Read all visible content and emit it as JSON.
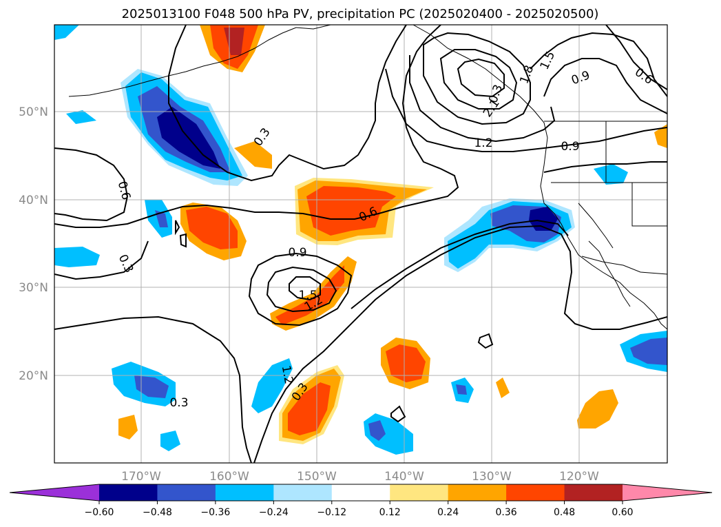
{
  "title": "2025013100 F048 500 hPa PV, precipitation PC (2025020400 - 2025020500)",
  "map": {
    "lon_labels": [
      "170°W",
      "160°W",
      "150°W",
      "140°W",
      "130°W",
      "120°W"
    ],
    "lat_labels": [
      "50°N",
      "40°N",
      "30°N",
      "20°N"
    ]
  },
  "contour_labels": [
    "0.3",
    "0.6",
    "0.9",
    "1.2",
    "1.5",
    "1.8",
    "2.1",
    "0.9",
    "0.6",
    "1.2",
    "0.3",
    "0.6",
    "0.3",
    "0.9",
    "1.5",
    "1.2",
    "0.3",
    "0.3"
  ],
  "colorbar": {
    "tick_labels": [
      "−0.60",
      "−0.48",
      "−0.36",
      "−0.24",
      "−0.12",
      "0.12",
      "0.24",
      "0.36",
      "0.48",
      "0.60"
    ],
    "colors": [
      "#9b30d9",
      "#00008b",
      "#3355cc",
      "#00bfff",
      "#aee6ff",
      "#ffffff",
      "#ffe680",
      "#ffa500",
      "#ff4500",
      "#b22222",
      "#ff88aa"
    ]
  },
  "chart_data": {
    "type": "heatmap",
    "title": "2025013100 F048 500 hPa PV, precipitation PC (2025020400 - 2025020500)",
    "fields": [
      "500 hPa PV (contours)",
      "precipitation PC (shaded)"
    ],
    "x_ticks": [
      "170°W",
      "160°W",
      "150°W",
      "140°W",
      "130°W",
      "120°W"
    ],
    "y_ticks": [
      "50°N",
      "40°N",
      "30°N",
      "20°N"
    ],
    "contour_levels": [
      0.3,
      0.6,
      0.9,
      1.2,
      1.5,
      1.8,
      2.1
    ],
    "colorbar_bounds": [
      -0.6,
      -0.48,
      -0.36,
      -0.24,
      -0.12,
      0.12,
      0.24,
      0.36,
      0.48,
      0.6
    ],
    "grid": true
  }
}
